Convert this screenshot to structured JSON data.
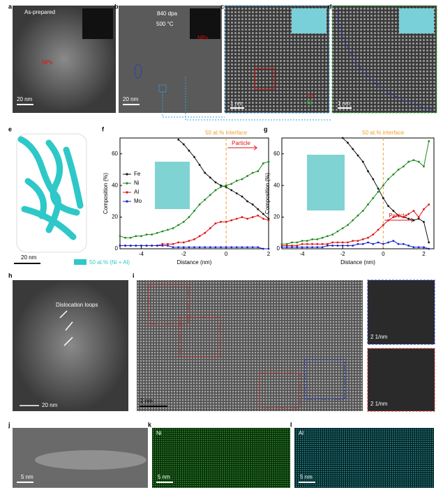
{
  "panels": {
    "a": {
      "label": "a",
      "text": "As-prepared",
      "annotation": "NPs",
      "scale": "20 nm"
    },
    "b": {
      "label": "b",
      "text": "840 dpa",
      "text2": "500 °C",
      "annotation": "NPs",
      "scale": "20 nm"
    },
    "c": {
      "label": "c",
      "legend_fe": "Fe",
      "legend_ni": "Ni",
      "scale": "1 nm"
    },
    "d": {
      "label": "d",
      "scale": "1 nm"
    },
    "e": {
      "label": "e",
      "scale": "20 nm",
      "legend": "50 at.% (Ni + Al)"
    },
    "h": {
      "label": "h",
      "annotation": "Dislocation loops",
      "scale": "20 nm"
    },
    "i": {
      "label": "i",
      "scale": "2 nm",
      "fft_scale_1": "2 1/nm",
      "fft_scale_2": "2 1/nm"
    },
    "j": {
      "label": "j",
      "scale": "5 nm"
    },
    "k": {
      "label": "k",
      "element": "Ni",
      "scale": "5 nm"
    },
    "l": {
      "label": "l",
      "element": "Al",
      "scale": "5 nm"
    }
  },
  "chart_data": [
    {
      "type": "line",
      "panel_label": "f",
      "xlabel": "Distance (nm)",
      "ylabel": "Composition (%)",
      "interface": {
        "label": "50 at.% interface",
        "x": 0
      },
      "particle": "Particle",
      "legend": true,
      "xlim": [
        -5,
        2
      ],
      "xticks": [
        -4,
        -2,
        0,
        2
      ],
      "ylim": [
        0,
        70
      ],
      "yticks": [
        0,
        20,
        40,
        60
      ],
      "x": [
        -5,
        -4.75,
        -4.5,
        -4.25,
        -4,
        -3.75,
        -3.5,
        -3.25,
        -3,
        -2.75,
        -2.5,
        -2.25,
        -2,
        -1.75,
        -1.5,
        -1.25,
        -1,
        -0.75,
        -0.5,
        -0.25,
        0,
        0.25,
        0.5,
        0.75,
        1,
        1.25,
        1.5,
        1.75,
        2
      ],
      "series": [
        {
          "name": "Fe",
          "color": "#111111",
          "values": [
            null,
            null,
            null,
            null,
            null,
            null,
            null,
            null,
            null,
            null,
            null,
            69,
            66,
            62,
            58,
            53,
            48,
            45,
            42,
            40,
            39,
            37,
            35,
            33,
            30,
            28,
            25,
            22,
            19
          ]
        },
        {
          "name": "Ni",
          "color": "#1e8a1e",
          "values": [
            8,
            7,
            7,
            8,
            8,
            9,
            9,
            10,
            11,
            12,
            13,
            15,
            17,
            20,
            24,
            28,
            31,
            34,
            37,
            39,
            40,
            41,
            43,
            44,
            46,
            48,
            49,
            54,
            55
          ]
        },
        {
          "name": "Al",
          "color": "#e01010",
          "values": [
            2,
            2,
            2,
            2,
            2,
            2,
            2,
            2,
            3,
            3,
            3,
            4,
            4,
            5,
            6,
            8,
            10,
            13,
            16,
            17,
            17,
            18,
            19,
            20,
            19,
            20,
            21,
            19,
            18
          ]
        },
        {
          "name": "Mo",
          "color": "#1020d0",
          "values": [
            2,
            2,
            2,
            2,
            2,
            2,
            2,
            2,
            2,
            2,
            1,
            1,
            1,
            1,
            1,
            1,
            1,
            1,
            1,
            1,
            1,
            1,
            1,
            1,
            1,
            1,
            1,
            0,
            0
          ]
        }
      ]
    },
    {
      "type": "line",
      "panel_label": "g",
      "xlabel": "Distance (nm)",
      "ylabel": "Composition (%)",
      "interface": {
        "label": "50 at.% interface",
        "x": 0
      },
      "particle": "Particle",
      "legend": false,
      "xlim": [
        -5,
        2.5
      ],
      "xticks": [
        -4,
        -2,
        0,
        2
      ],
      "ylim": [
        0,
        70
      ],
      "yticks": [
        0,
        20,
        40,
        60
      ],
      "x": [
        -5,
        -4.75,
        -4.5,
        -4.25,
        -4,
        -3.75,
        -3.5,
        -3.25,
        -3,
        -2.75,
        -2.5,
        -2.25,
        -2,
        -1.75,
        -1.5,
        -1.25,
        -1,
        -0.75,
        -0.5,
        -0.25,
        0,
        0.25,
        0.5,
        0.75,
        1,
        1.25,
        1.5,
        1.75,
        2,
        2.25
      ],
      "series": [
        {
          "name": "Fe",
          "color": "#111111",
          "values": [
            null,
            null,
            null,
            null,
            null,
            null,
            null,
            null,
            null,
            null,
            null,
            null,
            70,
            67,
            63,
            59,
            55,
            49,
            44,
            38,
            32,
            27,
            24,
            21,
            20,
            19,
            18,
            19,
            17,
            4
          ]
        },
        {
          "name": "Ni",
          "color": "#1e8a1e",
          "values": [
            3,
            3,
            4,
            4,
            5,
            5,
            6,
            6,
            7,
            8,
            9,
            11,
            13,
            15,
            18,
            21,
            24,
            28,
            32,
            36,
            40,
            44,
            47,
            50,
            52,
            55,
            56,
            55,
            52,
            68
          ]
        },
        {
          "name": "Al",
          "color": "#e01010",
          "values": [
            2,
            2,
            2,
            2,
            3,
            3,
            3,
            3,
            3,
            3,
            4,
            4,
            4,
            4,
            5,
            5,
            6,
            7,
            9,
            12,
            15,
            18,
            20,
            21,
            20,
            22,
            24,
            20,
            25,
            28
          ]
        },
        {
          "name": "Mo",
          "color": "#1020d0",
          "values": [
            1,
            1,
            1,
            1,
            1,
            1,
            1,
            1,
            1,
            2,
            2,
            2,
            2,
            2,
            2,
            3,
            3,
            4,
            3,
            4,
            3,
            4,
            5,
            3,
            3,
            2,
            1,
            1,
            1,
            0
          ]
        }
      ]
    }
  ]
}
